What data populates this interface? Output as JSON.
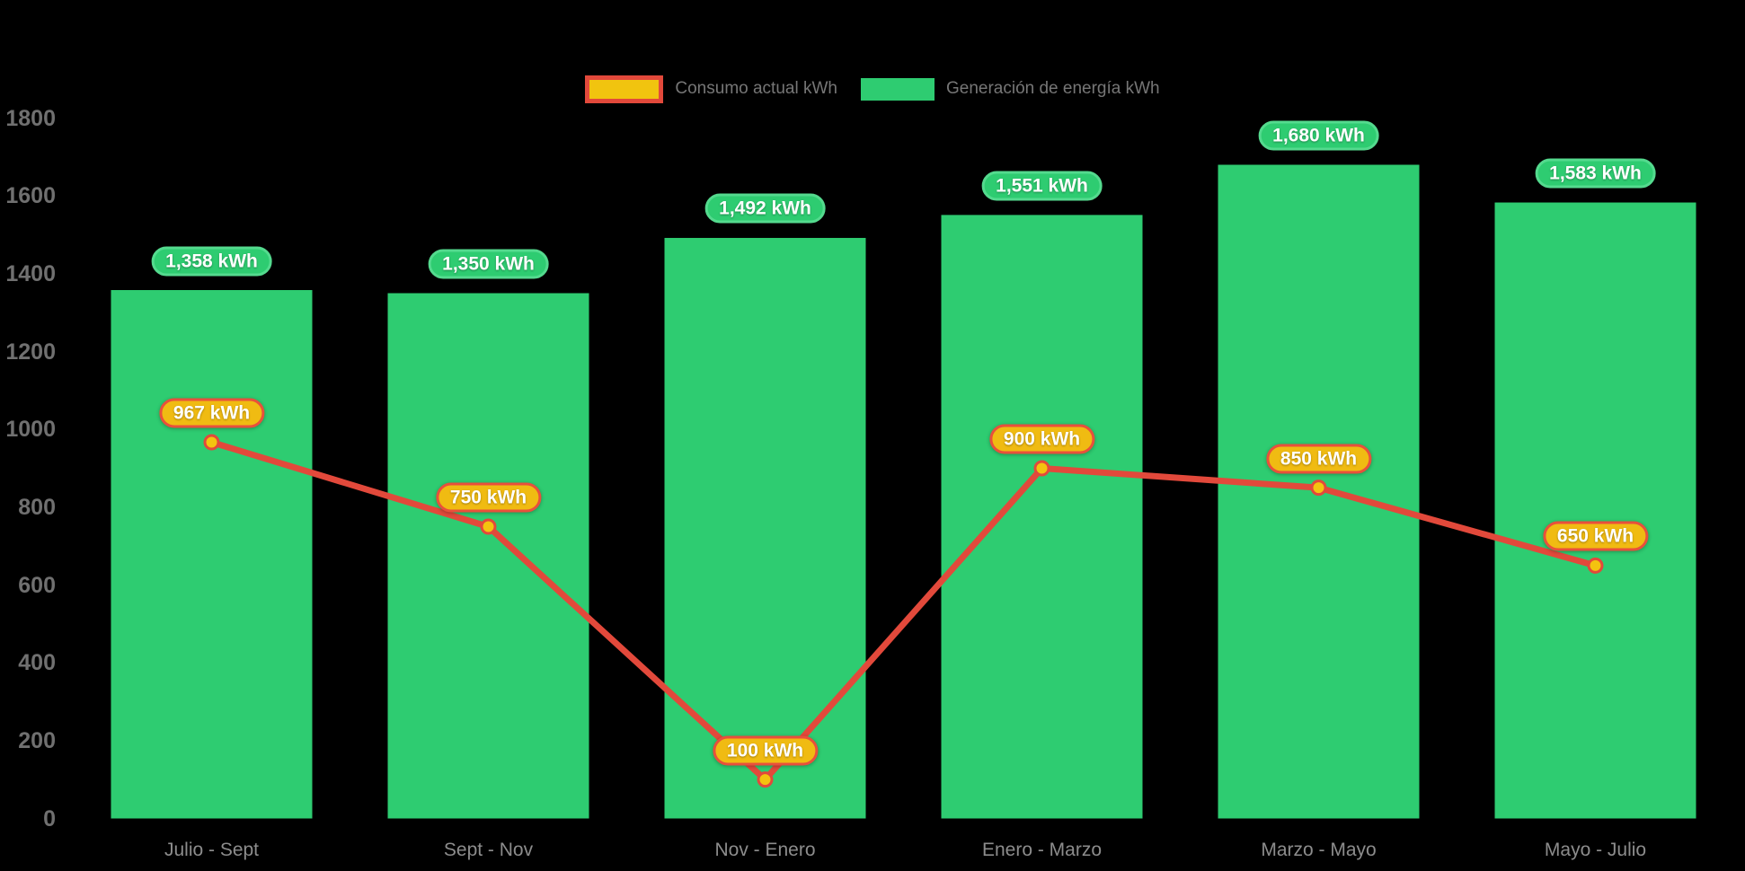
{
  "canvas_background": "#000000",
  "legend": {
    "items": [
      {
        "id": "consumo",
        "label": "Consumo actual kWh",
        "swatch_type": "line",
        "swatch_fill": "#f1c40f",
        "swatch_border": "#e2493b"
      },
      {
        "id": "generacion",
        "label": "Generación de energía kWh",
        "swatch_type": "bar",
        "swatch_fill": "#2ecc71"
      }
    ],
    "text_color": "#767676"
  },
  "chart_data": {
    "type": "bar+line combo",
    "title": "",
    "xlabel": "",
    "ylabel": "",
    "categories": [
      "Julio - Sept",
      "Sept - Nov",
      "Nov - Enero",
      "Enero - Marzo",
      "Marzo - Mayo",
      "Mayo - Julio"
    ],
    "series": [
      {
        "name": "Generación de energía kWh",
        "type": "bar",
        "color": "#2ecc71",
        "values": [
          1358,
          1350,
          1492,
          1551,
          1680,
          1583
        ],
        "value_labels": [
          "1,358 kWh",
          "1,350 kWh",
          "1,492 kWh",
          "1,551 kWh",
          "1,680 kWh",
          "1,583 kWh"
        ],
        "label_pill": {
          "fill": "#2ecc71",
          "border": "#54da8e",
          "text_color": "#ffffff"
        }
      },
      {
        "name": "Consumo actual kWh",
        "type": "line",
        "color": "#e2493b",
        "marker_fill": "#f4c30f",
        "marker_border": "#e2493b",
        "values": [
          967,
          750,
          100,
          900,
          850,
          650
        ],
        "value_labels": [
          "967 kWh",
          "750 kWh",
          "100 kWh",
          "900 kWh",
          "850 kWh",
          "650 kWh"
        ],
        "label_pill": {
          "fill": "#f0bb12",
          "border": "#e8503c",
          "text_color": "#ffffff"
        }
      }
    ],
    "ylim": [
      0,
      1800
    ],
    "ytick_step": 200,
    "yticks": [
      "0",
      "200",
      "400",
      "600",
      "800",
      "1000",
      "1200",
      "1400",
      "1600",
      "1800"
    ],
    "grid": false,
    "legend_position": "top-center",
    "axis_text_color_y": "#707070",
    "axis_text_color_x": "#8c8c8c"
  }
}
